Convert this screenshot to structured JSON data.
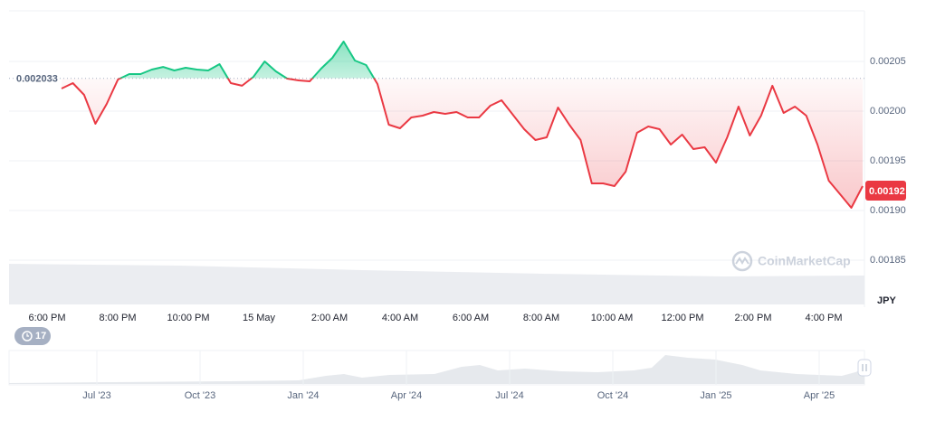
{
  "chart_data": {
    "type": "line",
    "x_labels": [
      "6:00 PM",
      "8:00 PM",
      "10:00 PM",
      "15 May",
      "2:00 AM",
      "4:00 AM",
      "6:00 AM",
      "8:00 AM",
      "10:00 AM",
      "12:00 PM",
      "2:00 PM",
      "4:00 PM"
    ],
    "values": [
      0.0020227,
      0.0020282,
      0.0020164,
      0.0019873,
      0.0020073,
      0.0020318,
      0.0020373,
      0.0020373,
      0.0020418,
      0.0020445,
      0.0020409,
      0.0020436,
      0.0020418,
      0.0020409,
      0.0020473,
      0.0020282,
      0.0020255,
      0.0020345,
      0.00205,
      0.00204,
      0.0020327,
      0.0020309,
      0.00203,
      0.0020427,
      0.0020536,
      0.00207,
      0.0020509,
      0.0020464,
      0.0020273,
      0.0019864,
      0.0019827,
      0.0019936,
      0.0019955,
      0.0019991,
      0.0019973,
      0.0019991,
      0.0019936,
      0.0019936,
      0.0020055,
      0.0020109,
      0.0019964,
      0.0019818,
      0.0019709,
      0.0019736,
      0.0020036,
      0.0019864,
      0.0019709,
      0.0019273,
      0.0019273,
      0.0019245,
      0.0019391,
      0.0019782,
      0.0019845,
      0.0019818,
      0.0019664,
      0.0019764,
      0.0019618,
      0.0019636,
      0.0019482,
      0.0019736,
      0.0020045,
      0.0019755,
      0.0019955,
      0.0020255,
      0.0019982,
      0.0020045,
      0.0019955,
      0.0019664,
      0.00193,
      0.0019164,
      0.0019027,
      0.0019245
    ],
    "baseline": 0.002033,
    "current_price": 0.00192,
    "up_color": "#16c784",
    "down_color": "#ea3943",
    "ylim": [
      0.00181,
      0.0021
    ],
    "yticks": [
      0.00205,
      {
        "value": 0.002,
        "label": "0.00200"
      },
      0.00195,
      {
        "value": 0.0019,
        "label": "0.00190"
      },
      0.00185
    ],
    "y_unit": "JPY",
    "grid": true
  },
  "navigator": {
    "labels": [
      "Jul '23",
      "Oct '23",
      "Jan '24",
      "Apr '24",
      "Jul '24",
      "Oct '24",
      "Jan '25",
      "Apr '25"
    ]
  },
  "badge": "17",
  "watermark": "CoinMarketCap"
}
